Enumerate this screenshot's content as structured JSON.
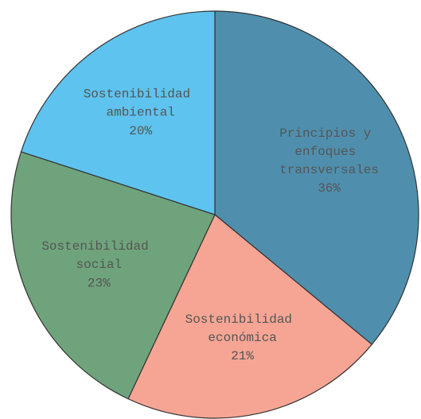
{
  "chart_data": {
    "type": "pie",
    "categories": [
      "Principios y enfoques transversales",
      "Sostenibilidad económica",
      "Sostenibilidad social",
      "Sostenibilidad ambiental"
    ],
    "values": [
      36,
      21,
      23,
      20
    ],
    "value_labels": [
      "36%",
      "21%",
      "23%",
      "20%"
    ],
    "colors": [
      "#4f8fad",
      "#f6a594",
      "#6fa37c",
      "#5ec3ef"
    ]
  }
}
